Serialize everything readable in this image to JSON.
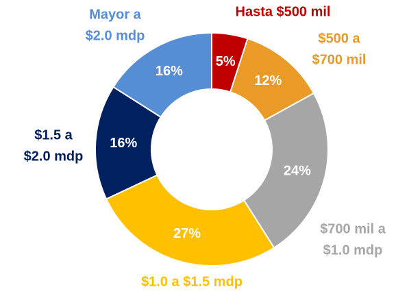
{
  "chart_data": {
    "type": "donut",
    "categories": [
      [
        "Hasta $500 mil"
      ],
      [
        "$500 a",
        "$700 mil"
      ],
      [
        "$700 mil a",
        "$1.0 mdp"
      ],
      [
        "$1.0 a $1.5 mdp"
      ],
      [
        "$1.5 a",
        "$2.0 mdp"
      ],
      [
        "Mayor a",
        "$2.0 mdp"
      ]
    ],
    "values": [
      5,
      12,
      24,
      27,
      16,
      16
    ],
    "value_labels": [
      "5%",
      "12%",
      "24%",
      "27%",
      "16%",
      "16%"
    ],
    "colors": [
      "#c00000",
      "#e99a27",
      "#a6a6a6",
      "#ffc000",
      "#002060",
      "#558ed5"
    ]
  }
}
